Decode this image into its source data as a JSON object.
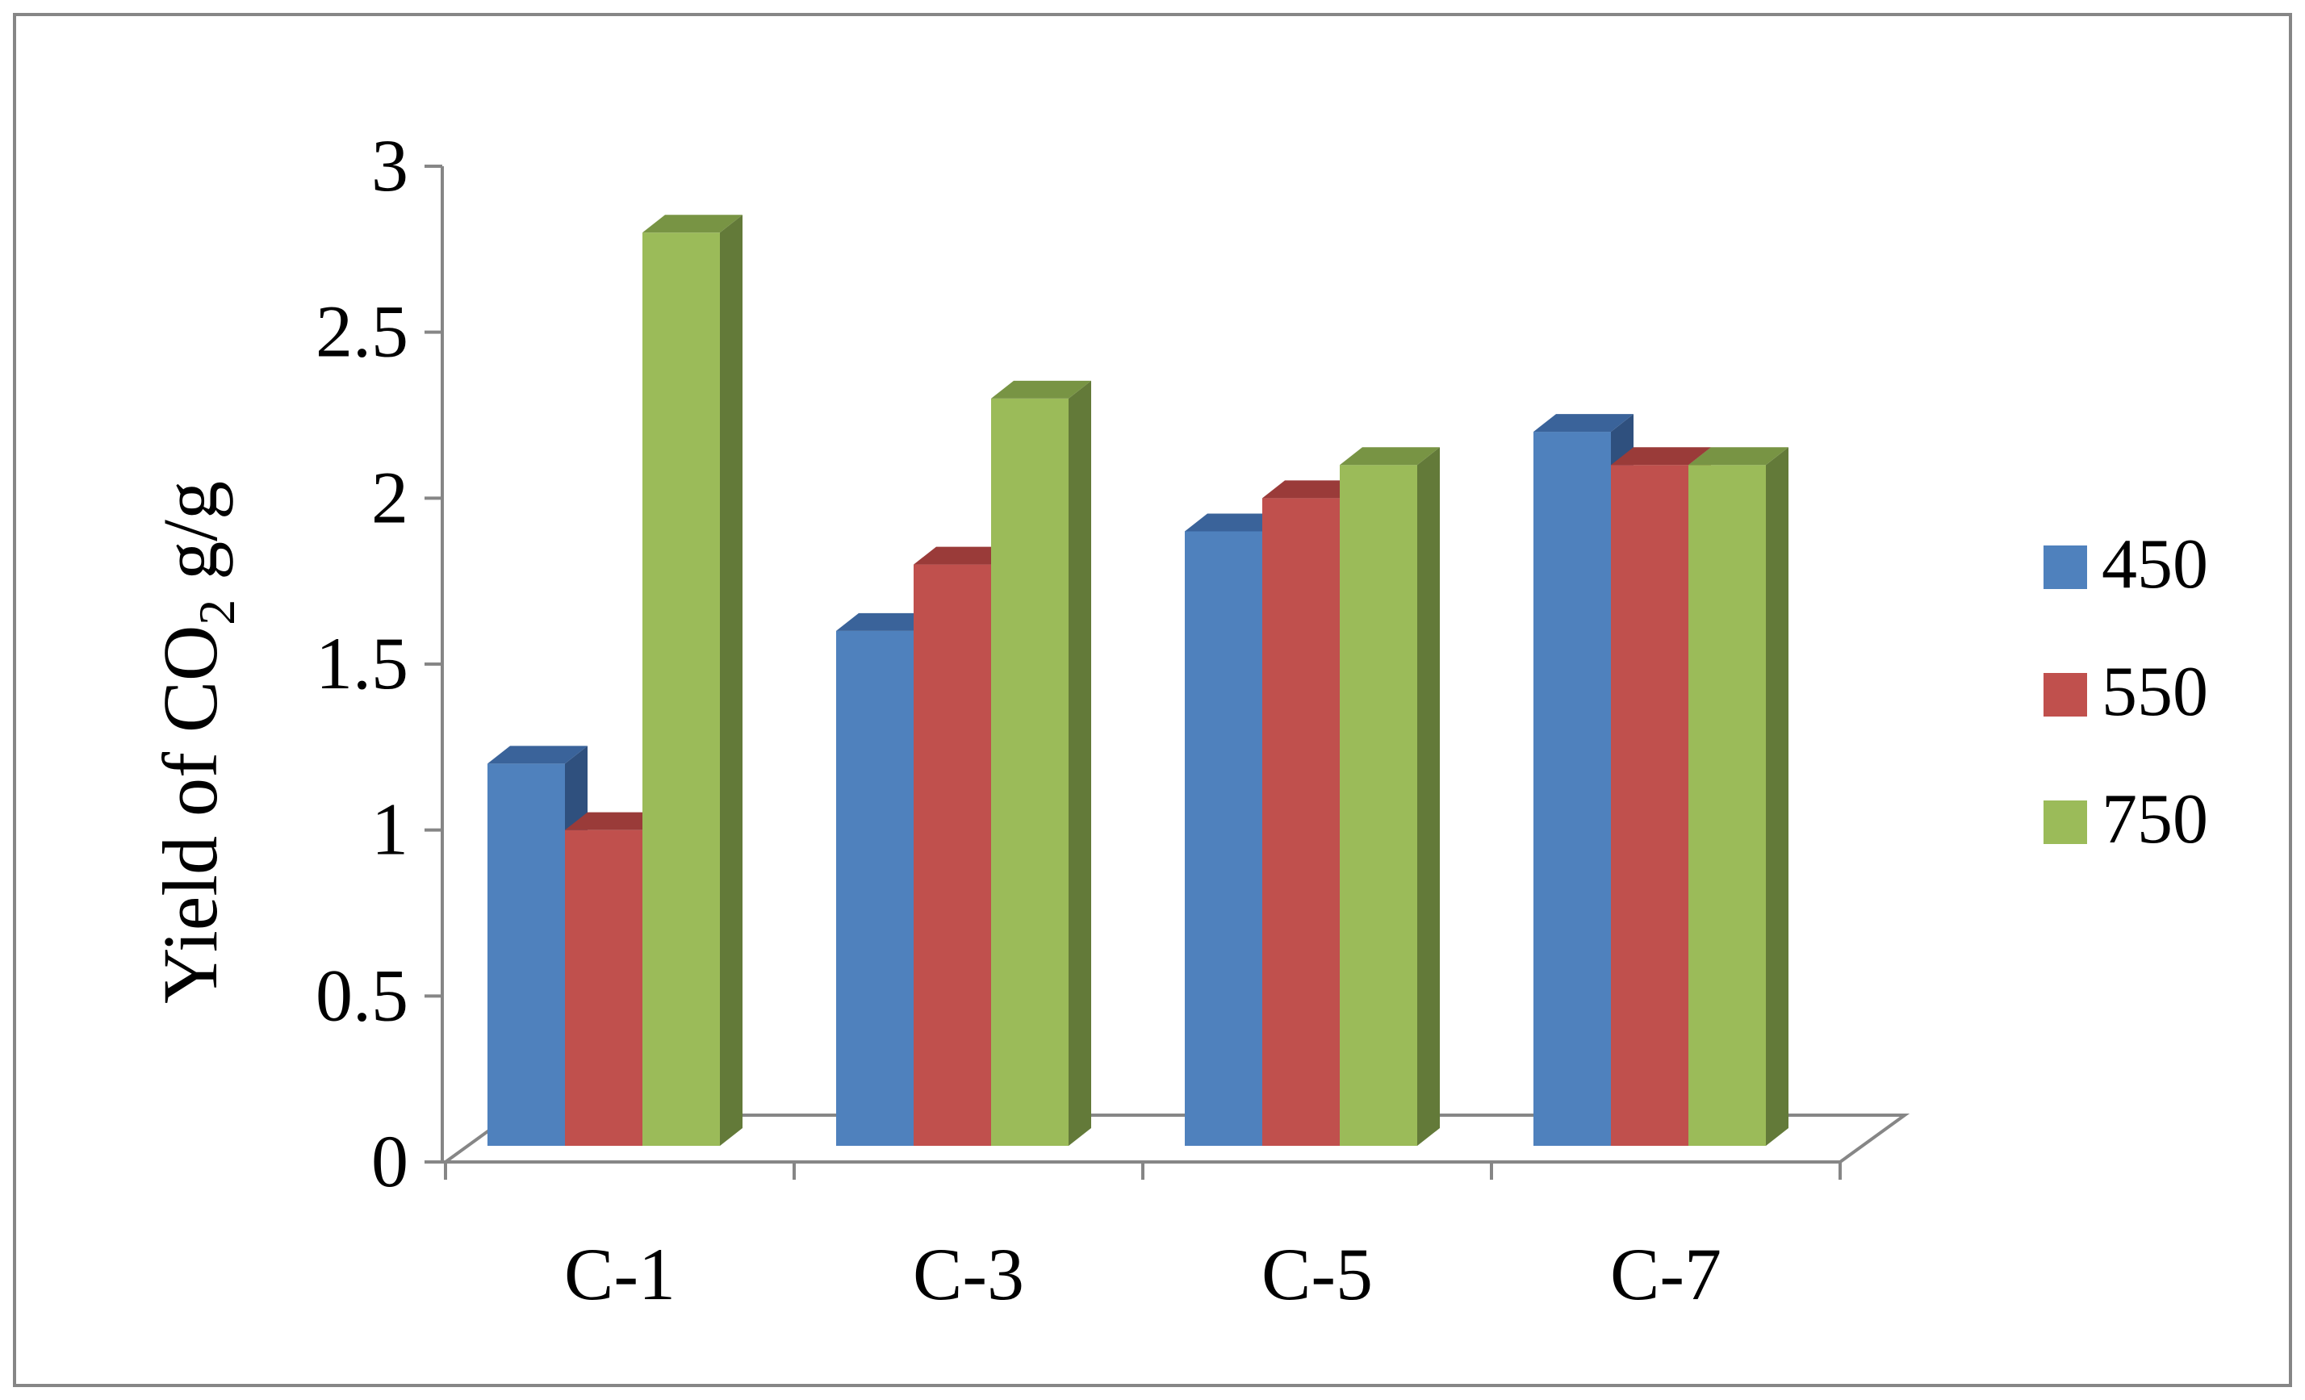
{
  "chart_data": {
    "type": "bar",
    "title": "",
    "xlabel": "",
    "ylabel": {
      "prefix": "Yield of CO",
      "subscript": "2",
      "suffix": " g/g"
    },
    "ylim": [
      0,
      3
    ],
    "yticks": [
      "0",
      "0.5",
      "1",
      "1.5",
      "2",
      "2.5",
      "3"
    ],
    "categories": [
      "C-1",
      "C-3",
      "C-5",
      "C-7"
    ],
    "series": [
      {
        "name": "450",
        "values": [
          1.2,
          1.6,
          1.9,
          2.2
        ],
        "color": "#4f81bd",
        "top_color": "#3a639a",
        "side_color": "#2f507e"
      },
      {
        "name": "550",
        "values": [
          1.0,
          1.8,
          2.0,
          2.1
        ],
        "color": "#c0504d",
        "top_color": "#9a3b39",
        "side_color": "#7e302e"
      },
      {
        "name": "750",
        "values": [
          2.8,
          2.3,
          2.1,
          2.1
        ],
        "color": "#9bbb59",
        "top_color": "#789444",
        "side_color": "#637a39"
      }
    ],
    "grid": false,
    "legend_position": "right",
    "style": "3d-clustered-column"
  }
}
